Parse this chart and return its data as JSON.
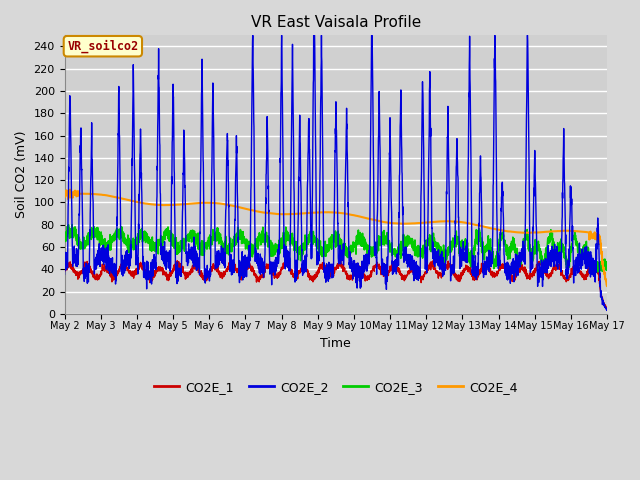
{
  "title": "VR East Vaisala Profile",
  "xlabel": "Time",
  "ylabel": "Soil CO2 (mV)",
  "annotation": "VR_soilco2",
  "ylim": [
    0,
    250
  ],
  "yticks": [
    0,
    20,
    40,
    60,
    80,
    100,
    120,
    140,
    160,
    180,
    200,
    220,
    240
  ],
  "x_labels": [
    "May 2",
    "May 3",
    "May 4",
    "May 5",
    "May 6",
    "May 7",
    "May 8",
    "May 9",
    "May 10",
    "May 11",
    "May 12",
    "May 13",
    "May 14",
    "May 15",
    "May 16",
    "May 17"
  ],
  "line_colors": [
    "#cc0000",
    "#0000dd",
    "#00cc00",
    "#ff9900"
  ],
  "line_labels": [
    "CO2E_1",
    "CO2E_2",
    "CO2E_3",
    "CO2E_4"
  ],
  "bg_color": "#d8d8d8",
  "plot_bg_color": "#d0d0d0",
  "grid_color": "#ffffff"
}
